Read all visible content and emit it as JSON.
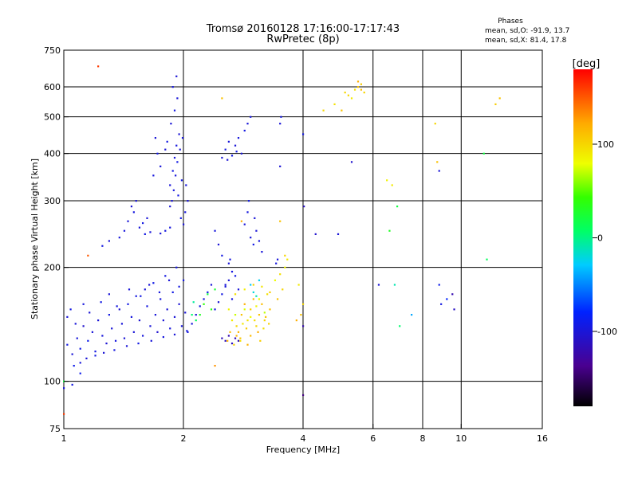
{
  "chart_data": {
    "type": "scatter",
    "title": "Tromsø 20160128 17:16:00-17:17:43",
    "subtitle": "RwPretec (8p)",
    "xlabel": "Frequency [MHz]",
    "ylabel": "Stationary phase Virtual Height [km]",
    "x_scale": "log",
    "y_scale": "log",
    "xlim": [
      1,
      16
    ],
    "ylim": [
      75,
      750
    ],
    "x_ticks": [
      1,
      2,
      4,
      6,
      8,
      10,
      16
    ],
    "x_tick_labels": [
      "1",
      "2",
      "4",
      "6",
      "8",
      "10",
      "16"
    ],
    "y_ticks": [
      75,
      100,
      200,
      300,
      400,
      500,
      600,
      750
    ],
    "y_tick_labels": [
      "75",
      "100",
      "200",
      "300",
      "400",
      "500",
      "600",
      "750"
    ],
    "grid": true,
    "stats": {
      "heading": "Phases",
      "line_o": "mean, sd,O: -91.9, 13.7",
      "line_x": "mean, sd,X:  81.4, 17.8"
    },
    "colorbar": {
      "label": "[deg]",
      "range": [
        -180,
        180
      ],
      "ticks": [
        100,
        0,
        -100
      ],
      "tick_labels": [
        "100",
        "0",
        "-100"
      ]
    },
    "points": [
      [
        1.02,
        125,
        -95
      ],
      [
        1.05,
        118,
        -100
      ],
      [
        1.08,
        130,
        -98
      ],
      [
        1.1,
        122,
        -92
      ],
      [
        1.12,
        140,
        -105
      ],
      [
        1.15,
        128,
        -90
      ],
      [
        1.18,
        135,
        -100
      ],
      [
        1.2,
        120,
        -95
      ],
      [
        1.22,
        145,
        -100
      ],
      [
        1.25,
        132,
        -98
      ],
      [
        1.28,
        126,
        -102
      ],
      [
        1.3,
        150,
        -94
      ],
      [
        1.32,
        138,
        -100
      ],
      [
        1.35,
        128,
        -96
      ],
      [
        1.38,
        155,
        -104
      ],
      [
        1.4,
        142,
        -99
      ],
      [
        1.42,
        130,
        -101
      ],
      [
        1.45,
        160,
        -93
      ],
      [
        1.48,
        148,
        -97
      ],
      [
        1.5,
        135,
        -100
      ],
      [
        1.52,
        168,
        -95
      ],
      [
        1.55,
        145,
        -103
      ],
      [
        1.58,
        132,
        -98
      ],
      [
        1.6,
        175,
        -100
      ],
      [
        1.62,
        158,
        -96
      ],
      [
        1.65,
        140,
        -100
      ],
      [
        1.68,
        182,
        -92
      ],
      [
        1.7,
        150,
        -99
      ],
      [
        1.72,
        135,
        -104
      ],
      [
        1.75,
        165,
        -97
      ],
      [
        1.78,
        145,
        -100
      ],
      [
        1.8,
        190,
        -95
      ],
      [
        1.82,
        155,
        -101
      ],
      [
        1.85,
        138,
        -98
      ],
      [
        1.88,
        172,
        -93
      ],
      [
        1.9,
        148,
        -100
      ],
      [
        1.92,
        200,
        -96
      ],
      [
        1.95,
        160,
        -102
      ],
      [
        1.98,
        140,
        -99
      ],
      [
        2.0,
        185,
        -94
      ],
      [
        2.02,
        152,
        -100
      ],
      [
        2.05,
        135,
        -97
      ],
      [
        1.06,
        110,
        -90
      ],
      [
        1.1,
        112,
        -99
      ],
      [
        1.14,
        115,
        -100
      ],
      [
        1.2,
        117,
        -95
      ],
      [
        1.26,
        119,
        -101
      ],
      [
        1.34,
        121,
        -96
      ],
      [
        1.44,
        124,
        -100
      ],
      [
        1.54,
        126,
        -93
      ],
      [
        1.66,
        128,
        -99
      ],
      [
        1.78,
        131,
        -97
      ],
      [
        1.9,
        133,
        -100
      ],
      [
        2.04,
        136,
        -95
      ],
      [
        2.1,
        142,
        -98
      ],
      [
        2.15,
        150,
        -100
      ],
      [
        2.2,
        158,
        -96
      ],
      [
        2.25,
        165,
        -99
      ],
      [
        2.3,
        172,
        -94
      ],
      [
        2.35,
        180,
        -100
      ],
      [
        2.4,
        155,
        -97
      ],
      [
        2.45,
        162,
        -101
      ],
      [
        2.5,
        170,
        -95
      ],
      [
        2.55,
        178,
        -99
      ],
      [
        2.6,
        185,
        -100
      ],
      [
        2.65,
        165,
        -96
      ],
      [
        1.02,
        148,
        -100
      ],
      [
        1.04,
        155,
        -95
      ],
      [
        1.07,
        142,
        -99
      ],
      [
        1.12,
        160,
        -97
      ],
      [
        1.16,
        152,
        -101
      ],
      [
        1.24,
        162,
        -94
      ],
      [
        1.3,
        170,
        -100
      ],
      [
        1.36,
        158,
        -96
      ],
      [
        1.46,
        175,
        -99
      ],
      [
        1.56,
        168,
        -93
      ],
      [
        1.64,
        180,
        -100
      ],
      [
        1.74,
        172,
        -97
      ],
      [
        1.84,
        185,
        -100
      ],
      [
        1.95,
        178,
        -95
      ],
      [
        1.42,
        250,
        -98
      ],
      [
        1.45,
        265,
        -100
      ],
      [
        1.5,
        280,
        -96
      ],
      [
        1.55,
        255,
        -99
      ],
      [
        1.6,
        245,
        -94
      ],
      [
        1.62,
        270,
        -100
      ],
      [
        1.38,
        240,
        -97
      ],
      [
        1.48,
        290,
        -101
      ],
      [
        1.58,
        262,
        -95
      ],
      [
        1.65,
        248,
        -99
      ],
      [
        1.75,
        246,
        -100
      ],
      [
        1.8,
        250,
        -96
      ],
      [
        1.85,
        255,
        -98
      ],
      [
        1.3,
        235,
        -100
      ],
      [
        1.25,
        228,
        -95
      ],
      [
        1.52,
        300,
        -99
      ],
      [
        1.85,
        330,
        -100
      ],
      [
        1.88,
        360,
        -95
      ],
      [
        1.9,
        390,
        -99
      ],
      [
        1.92,
        420,
        -97
      ],
      [
        1.95,
        450,
        -101
      ],
      [
        1.98,
        340,
        -94
      ],
      [
        1.87,
        300,
        -100
      ],
      [
        1.89,
        320,
        -96
      ],
      [
        1.91,
        350,
        -99
      ],
      [
        1.93,
        380,
        -93
      ],
      [
        1.96,
        410,
        -100
      ],
      [
        1.99,
        440,
        -97
      ],
      [
        1.86,
        480,
        -100
      ],
      [
        1.9,
        520,
        -95
      ],
      [
        1.93,
        560,
        -99
      ],
      [
        1.88,
        600,
        -97
      ],
      [
        1.92,
        640,
        -101
      ],
      [
        1.94,
        310,
        -94
      ],
      [
        2.0,
        260,
        -100
      ],
      [
        2.02,
        280,
        -96
      ],
      [
        2.05,
        300,
        -99
      ],
      [
        1.97,
        270,
        -93
      ],
      [
        1.85,
        290,
        -100
      ],
      [
        2.03,
        330,
        -97
      ],
      [
        1.7,
        440,
        -100
      ],
      [
        1.72,
        400,
        -95
      ],
      [
        1.75,
        370,
        -99
      ],
      [
        1.68,
        350,
        -97
      ],
      [
        1.8,
        410,
        -101
      ],
      [
        1.82,
        430,
        -94
      ],
      [
        2.5,
        390,
        -100
      ],
      [
        2.55,
        410,
        -96
      ],
      [
        2.6,
        430,
        -99
      ],
      [
        2.65,
        395,
        -93
      ],
      [
        2.7,
        420,
        -100
      ],
      [
        2.75,
        440,
        -97
      ],
      [
        2.8,
        400,
        -100
      ],
      [
        2.85,
        460,
        -95
      ],
      [
        2.9,
        480,
        -99
      ],
      [
        2.95,
        500,
        -97
      ],
      [
        2.58,
        385,
        -101
      ],
      [
        2.72,
        405,
        -94
      ],
      [
        2.85,
        260,
        -100
      ],
      [
        2.9,
        280,
        -96
      ],
      [
        2.95,
        240,
        -99
      ],
      [
        3.0,
        230,
        -93
      ],
      [
        3.05,
        250,
        -100
      ],
      [
        3.1,
        235,
        -97
      ],
      [
        3.02,
        270,
        -100
      ],
      [
        2.92,
        300,
        -95
      ],
      [
        3.15,
        220,
        -99
      ],
      [
        2.4,
        250,
        -97
      ],
      [
        2.45,
        230,
        -101
      ],
      [
        2.5,
        215,
        -94
      ],
      [
        2.6,
        205,
        -100
      ],
      [
        2.65,
        195,
        -96
      ],
      [
        2.55,
        180,
        -99
      ],
      [
        2.7,
        190,
        -93
      ],
      [
        2.75,
        175,
        -100
      ],
      [
        2.62,
        210,
        -97
      ],
      [
        3.5,
        480,
        -100
      ],
      [
        3.52,
        500,
        -95
      ],
      [
        3.45,
        210,
        -99
      ],
      [
        3.42,
        205,
        -97
      ],
      [
        3.5,
        370,
        -101
      ],
      [
        4.0,
        450,
        -94
      ],
      [
        2.5,
        130,
        -115
      ],
      [
        2.55,
        128,
        -110
      ],
      [
        2.6,
        132,
        -120
      ],
      [
        2.65,
        126,
        -112
      ],
      [
        2.7,
        130,
        -118
      ],
      [
        2.75,
        128,
        -116
      ],
      [
        4.0,
        92,
        -140
      ],
      [
        4.0,
        140,
        -120
      ],
      [
        4.02,
        290,
        -110
      ],
      [
        4.3,
        245,
        -105
      ],
      [
        4.9,
        245,
        -100
      ],
      [
        5.3,
        380,
        -105
      ],
      [
        2.72,
        140,
        100
      ],
      [
        2.8,
        150,
        110
      ],
      [
        2.85,
        160,
        120
      ],
      [
        2.9,
        145,
        95
      ],
      [
        2.95,
        155,
        105
      ],
      [
        3.0,
        165,
        115
      ],
      [
        3.05,
        140,
        100
      ],
      [
        3.1,
        150,
        108
      ],
      [
        3.15,
        160,
        112
      ],
      [
        3.2,
        145,
        102
      ],
      [
        3.25,
        170,
        95
      ],
      [
        3.3,
        155,
        110
      ],
      [
        2.75,
        135,
        118
      ],
      [
        2.82,
        142,
        92
      ],
      [
        2.88,
        138,
        106
      ],
      [
        2.95,
        132,
        114
      ],
      [
        3.02,
        145,
        98
      ],
      [
        3.08,
        135,
        120
      ],
      [
        3.12,
        128,
        104
      ],
      [
        3.18,
        138,
        96
      ],
      [
        3.22,
        148,
        110
      ],
      [
        3.28,
        142,
        102
      ],
      [
        2.65,
        145,
        90
      ],
      [
        2.78,
        130,
        108
      ],
      [
        2.6,
        155,
        85
      ],
      [
        2.7,
        170,
        95
      ],
      [
        2.85,
        175,
        88
      ],
      [
        3.0,
        180,
        100
      ],
      [
        3.15,
        178,
        92
      ],
      [
        3.3,
        172,
        105
      ],
      [
        3.4,
        185,
        80
      ],
      [
        3.5,
        192,
        95
      ],
      [
        3.6,
        200,
        85
      ],
      [
        3.65,
        210,
        90
      ],
      [
        3.55,
        175,
        100
      ],
      [
        3.45,
        165,
        110
      ],
      [
        2.58,
        128,
        120
      ],
      [
        2.62,
        135,
        112
      ],
      [
        2.68,
        125,
        100
      ],
      [
        2.72,
        132,
        115
      ],
      [
        2.78,
        128,
        95
      ],
      [
        2.9,
        125,
        118
      ],
      [
        2.85,
        155,
        75
      ],
      [
        3.05,
        158,
        85
      ],
      [
        3.2,
        152,
        70
      ],
      [
        2.95,
        148,
        80
      ],
      [
        3.1,
        165,
        78
      ],
      [
        2.7,
        150,
        72
      ],
      [
        2.2,
        150,
        30
      ],
      [
        2.25,
        160,
        40
      ],
      [
        2.3,
        170,
        20
      ],
      [
        2.15,
        145,
        10
      ],
      [
        2.35,
        155,
        35
      ],
      [
        2.4,
        175,
        25
      ],
      [
        2.95,
        180,
        -30
      ],
      [
        3.0,
        172,
        -20
      ],
      [
        3.05,
        168,
        -10
      ],
      [
        3.1,
        185,
        -25
      ],
      [
        2.1,
        150,
        5
      ],
      [
        2.12,
        162,
        -5
      ],
      [
        4.0,
        160,
        100
      ],
      [
        3.9,
        180,
        90
      ],
      [
        3.95,
        150,
        110
      ],
      [
        3.85,
        145,
        120
      ],
      [
        5.2,
        570,
        100
      ],
      [
        5.4,
        590,
        95
      ],
      [
        5.5,
        600,
        110
      ],
      [
        5.6,
        610,
        105
      ],
      [
        5.7,
        580,
        100
      ],
      [
        5.5,
        620,
        120
      ],
      [
        5.3,
        560,
        90
      ],
      [
        5.6,
        590,
        115
      ],
      [
        4.5,
        520,
        100
      ],
      [
        4.8,
        540,
        95
      ],
      [
        5.0,
        520,
        110
      ],
      [
        5.1,
        580,
        100
      ],
      [
        6.6,
        250,
        30
      ],
      [
        6.8,
        180,
        -10
      ],
      [
        7.0,
        140,
        5
      ],
      [
        6.9,
        290,
        20
      ],
      [
        6.7,
        330,
        90
      ],
      [
        6.5,
        340,
        85
      ],
      [
        6.2,
        180,
        -100
      ],
      [
        7.5,
        150,
        -40
      ],
      [
        8.6,
        480,
        100
      ],
      [
        8.7,
        380,
        110
      ],
      [
        8.8,
        180,
        -90
      ],
      [
        8.9,
        160,
        -95
      ],
      [
        9.2,
        165,
        -80
      ],
      [
        9.5,
        170,
        -120
      ],
      [
        9.6,
        155,
        -110
      ],
      [
        8.8,
        360,
        -100
      ],
      [
        11.4,
        400,
        20
      ],
      [
        11.6,
        210,
        10
      ],
      [
        12.2,
        540,
        105
      ],
      [
        12.5,
        560,
        110
      ],
      [
        1.0,
        96,
        -100
      ],
      [
        1.05,
        98,
        -95
      ],
      [
        1.1,
        105,
        -90
      ],
      [
        1.0,
        100,
        20
      ],
      [
        1.0,
        82,
        160
      ],
      [
        1.22,
        680,
        160
      ],
      [
        1.15,
        215,
        150
      ],
      [
        2.4,
        110,
        130
      ],
      [
        2.8,
        265,
        120
      ],
      [
        3.5,
        265,
        110
      ],
      [
        3.6,
        215,
        100
      ],
      [
        2.5,
        560,
        110
      ]
    ]
  }
}
